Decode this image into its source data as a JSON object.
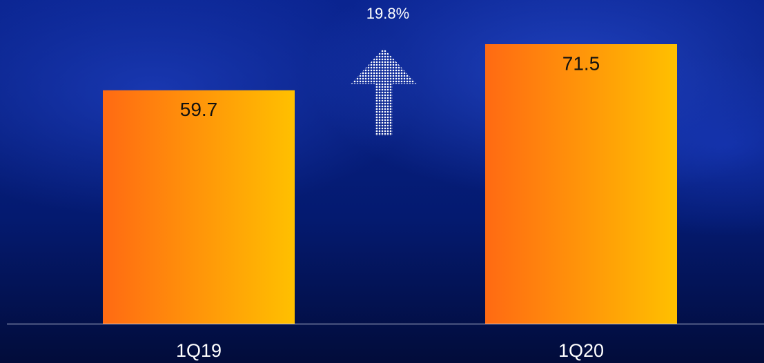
{
  "chart_data": {
    "type": "bar",
    "annotation": "19.8%",
    "categories": [
      "1Q19",
      "1Q20"
    ],
    "values": [
      59.7,
      71.5
    ],
    "colors": [
      "#ff6a13",
      "#ffc000"
    ]
  }
}
